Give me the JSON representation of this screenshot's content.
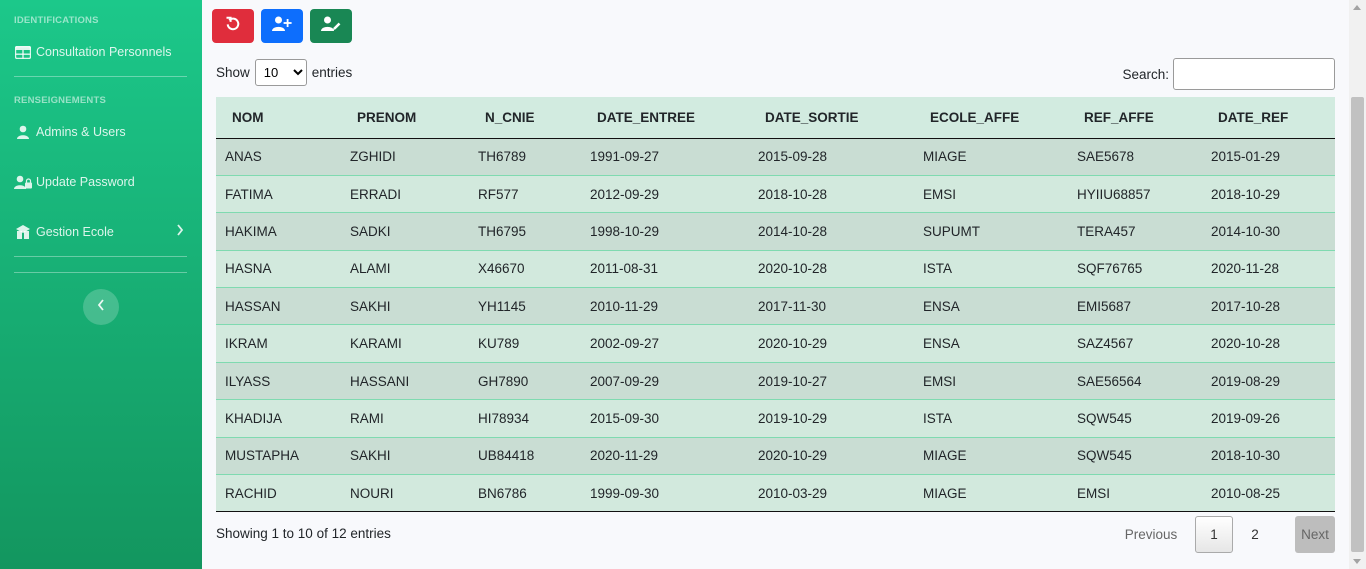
{
  "sidebar": {
    "heading_1": "IDENTIFICATIONS",
    "item_consultation": "Consultation Personnels",
    "heading_2": "RENSEIGNEMENTS",
    "item_admins": "Admins & Users",
    "item_password": "Update Password",
    "item_gestion": "Gestion Ecole",
    "icons": [
      "table-icon",
      "user-icon",
      "user-lock-icon",
      "school-icon",
      "chevron-right-icon",
      "chevron-left-icon"
    ]
  },
  "toolbar": {
    "buttons": [
      {
        "icon": "refresh-icon",
        "color": "#e02d3c"
      },
      {
        "icon": "add-user-icon",
        "color": "#0d6efd"
      },
      {
        "icon": "edit-user-icon",
        "color": "#198754"
      }
    ]
  },
  "datatable": {
    "show_label": "Show",
    "entries_label": "entries",
    "length_value": "10",
    "search_label": "Search:",
    "search_value": "",
    "columns": [
      "NOM",
      "PRENOM",
      "N_CNIE",
      "DATE_ENTREE",
      "DATE_SORTIE",
      "ECOLE_AFFE",
      "REF_AFFE",
      "DATE_REF"
    ],
    "rows": [
      [
        "ANAS",
        "ZGHIDI",
        "TH6789",
        "1991-09-27",
        "2015-09-28",
        "MIAGE",
        "SAE5678",
        "2015-01-29"
      ],
      [
        "FATIMA",
        "ERRADI",
        "RF577",
        "2012-09-29",
        "2018-10-28",
        "EMSI",
        "HYIIU68857",
        "2018-10-29"
      ],
      [
        "HAKIMA",
        "SADKI",
        "TH6795",
        "1998-10-29",
        "2014-10-28",
        "SUPUMT",
        "TERA457",
        "2014-10-30"
      ],
      [
        "HASNA",
        "ALAMI",
        "X46670",
        "2011-08-31",
        "2020-10-28",
        "ISTA",
        "SQF76765",
        "2020-11-28"
      ],
      [
        "HASSAN",
        "SAKHI",
        "YH1145",
        "2010-11-29",
        "2017-11-30",
        "ENSA",
        "EMI5687",
        "2017-10-28"
      ],
      [
        "IKRAM",
        "KARAMI",
        "KU789",
        "2002-09-27",
        "2020-10-29",
        "ENSA",
        "SAZ4567",
        "2020-10-28"
      ],
      [
        "ILYASS",
        "HASSANI",
        "GH7890",
        "2007-09-29",
        "2019-10-27",
        "EMSI",
        "SAE56564",
        "2019-08-29"
      ],
      [
        "KHADIJA",
        "RAMI",
        "HI78934",
        "2015-09-30",
        "2019-10-29",
        "ISTA",
        "SQW545",
        "2019-09-26"
      ],
      [
        "MUSTAPHA",
        "SAKHI",
        "UB84418",
        "2020-11-29",
        "2020-10-29",
        "MIAGE",
        "SQW545",
        "2018-10-30"
      ],
      [
        "RACHID",
        "NOURI",
        "BN6786",
        "1999-09-30",
        "2010-03-29",
        "MIAGE",
        "EMSI",
        "2010-08-25"
      ]
    ],
    "info": "Showing 1 to 10 of 12 entries",
    "pagination": {
      "previous": "Previous",
      "page_1": "1",
      "page_2": "2",
      "next": "Next"
    }
  }
}
